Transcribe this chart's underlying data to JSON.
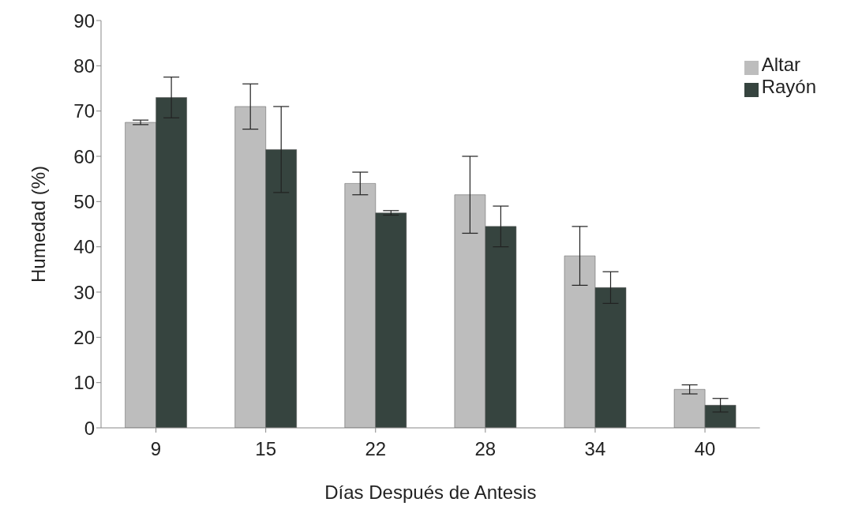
{
  "chart_data": {
    "type": "bar",
    "xlabel": "Días Después de Antesis",
    "ylabel": "Humedad (%)",
    "categories": [
      "9",
      "15",
      "22",
      "28",
      "34",
      "40"
    ],
    "series": [
      {
        "name": "Altar",
        "color": "#bdbdbd",
        "values": [
          67.5,
          71,
          54,
          51.5,
          38,
          8.5
        ],
        "errors": [
          0.5,
          5,
          2.5,
          8.5,
          6.5,
          1
        ]
      },
      {
        "name": "Rayón",
        "color": "#36443f",
        "values": [
          73,
          61.5,
          47.5,
          44.5,
          31,
          5
        ],
        "errors": [
          4.5,
          9.5,
          0.5,
          4.5,
          3.5,
          1.5
        ]
      }
    ],
    "ylim": [
      0,
      90
    ],
    "yticks": [
      0,
      10,
      20,
      30,
      40,
      50,
      60,
      70,
      80,
      90
    ],
    "grid": false,
    "legend": "top right"
  }
}
